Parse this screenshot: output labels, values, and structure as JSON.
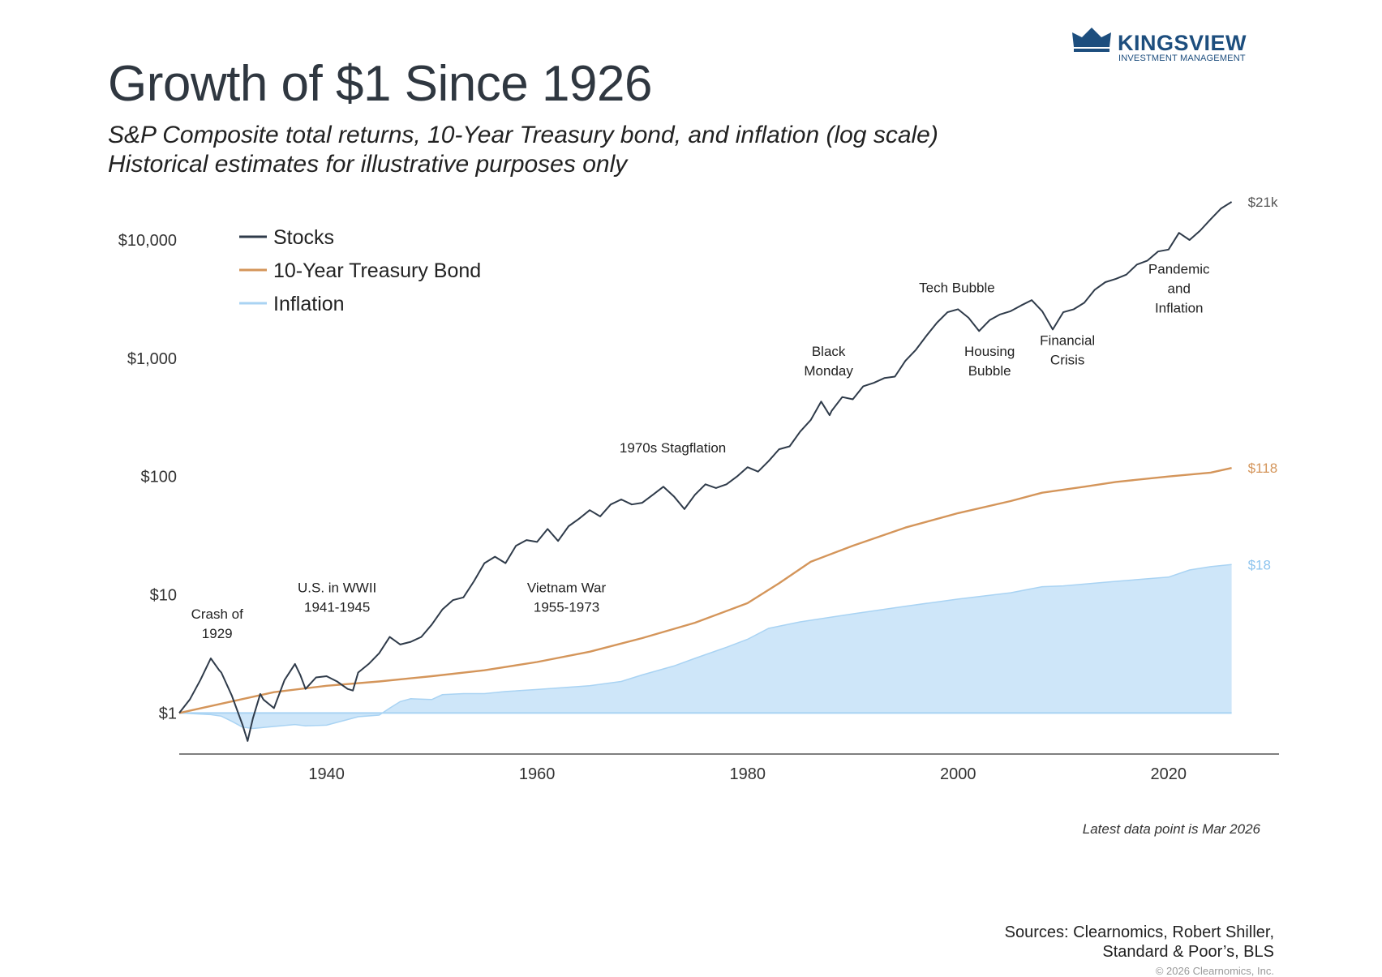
{
  "header": {
    "title": "Growth of $1 Since 1926",
    "subtitle_line1": "S&P Composite total returns, 10-Year Treasury bond, and inflation (log scale)",
    "subtitle_line2": "Historical estimates for illustrative purposes only"
  },
  "logo": {
    "name": "KINGSVIEW",
    "tagline": "INVESTMENT MANAGEMENT",
    "icon": "crown-icon",
    "color": "#1d4e7e"
  },
  "footer": {
    "latest_note": "Latest data point is Mar 2026",
    "sources_line1": "Sources: Clearnomics, Robert Shiller,",
    "sources_line2": "Standard & Poor’s, BLS",
    "copyright": "© 2026 Clearnomics, Inc."
  },
  "chart_data": {
    "type": "line",
    "yscale": "log",
    "ylim": [
      0.45,
      25000
    ],
    "xlim": [
      1926,
      2030.5
    ],
    "x_ticks": [
      1940,
      1960,
      1980,
      2000,
      2020
    ],
    "y_ticks": [
      {
        "value": 1,
        "label": "$1"
      },
      {
        "value": 10,
        "label": "$10"
      },
      {
        "value": 100,
        "label": "$100"
      },
      {
        "value": 1000,
        "label": "$1,000"
      },
      {
        "value": 10000,
        "label": "$10,000"
      }
    ],
    "legend_position": "top-left",
    "grid": false,
    "series": [
      {
        "name": "Stocks",
        "color": "#2f3b4a",
        "end_label": "$21k",
        "points": [
          [
            1926,
            1.0
          ],
          [
            1927,
            1.3
          ],
          [
            1928,
            1.9
          ],
          [
            1929,
            2.9
          ],
          [
            1929.8,
            2.3
          ],
          [
            1930,
            2.2
          ],
          [
            1931,
            1.4
          ],
          [
            1932,
            0.8
          ],
          [
            1932.5,
            0.58
          ],
          [
            1933,
            0.9
          ],
          [
            1933.7,
            1.45
          ],
          [
            1934,
            1.3
          ],
          [
            1935,
            1.1
          ],
          [
            1936,
            1.9
          ],
          [
            1937,
            2.6
          ],
          [
            1937.5,
            2.1
          ],
          [
            1938,
            1.6
          ],
          [
            1939,
            2.0
          ],
          [
            1940,
            2.05
          ],
          [
            1941,
            1.85
          ],
          [
            1942,
            1.6
          ],
          [
            1942.5,
            1.55
          ],
          [
            1943,
            2.2
          ],
          [
            1944,
            2.6
          ],
          [
            1945,
            3.2
          ],
          [
            1946,
            4.4
          ],
          [
            1947,
            3.8
          ],
          [
            1948,
            4.0
          ],
          [
            1949,
            4.4
          ],
          [
            1950,
            5.6
          ],
          [
            1951,
            7.5
          ],
          [
            1952,
            9.0
          ],
          [
            1953,
            9.5
          ],
          [
            1954,
            13.0
          ],
          [
            1955,
            18.5
          ],
          [
            1956,
            21.0
          ],
          [
            1957,
            18.5
          ],
          [
            1958,
            26.0
          ],
          [
            1959,
            29.0
          ],
          [
            1960,
            28.0
          ],
          [
            1961,
            36.0
          ],
          [
            1962,
            28.5
          ],
          [
            1963,
            38.0
          ],
          [
            1964,
            44.0
          ],
          [
            1965,
            52.0
          ],
          [
            1966,
            46.0
          ],
          [
            1967,
            58.0
          ],
          [
            1968,
            64.0
          ],
          [
            1969,
            58.0
          ],
          [
            1970,
            60.0
          ],
          [
            1971,
            70.0
          ],
          [
            1972,
            82.0
          ],
          [
            1973,
            68.0
          ],
          [
            1974,
            53.0
          ],
          [
            1975,
            70.0
          ],
          [
            1976,
            86.0
          ],
          [
            1977,
            80.0
          ],
          [
            1978,
            86.0
          ],
          [
            1979,
            100.0
          ],
          [
            1980,
            120.0
          ],
          [
            1981,
            110.0
          ],
          [
            1982,
            135.0
          ],
          [
            1983,
            170.0
          ],
          [
            1984,
            180.0
          ],
          [
            1985,
            240.0
          ],
          [
            1986,
            300.0
          ],
          [
            1987,
            430.0
          ],
          [
            1987.8,
            330.0
          ],
          [
            1988,
            360.0
          ],
          [
            1989,
            470.0
          ],
          [
            1990,
            450.0
          ],
          [
            1991,
            580.0
          ],
          [
            1992,
            620.0
          ],
          [
            1993,
            680.0
          ],
          [
            1994,
            700.0
          ],
          [
            1995,
            950.0
          ],
          [
            1996,
            1180.0
          ],
          [
            1997,
            1550.0
          ],
          [
            1998,
            2000.0
          ],
          [
            1999,
            2450.0
          ],
          [
            2000,
            2600.0
          ],
          [
            2001,
            2200.0
          ],
          [
            2002,
            1700.0
          ],
          [
            2003,
            2100.0
          ],
          [
            2004,
            2350.0
          ],
          [
            2005,
            2500.0
          ],
          [
            2006,
            2800.0
          ],
          [
            2007,
            3100.0
          ],
          [
            2008,
            2500.0
          ],
          [
            2009,
            1750.0
          ],
          [
            2010,
            2450.0
          ],
          [
            2011,
            2600.0
          ],
          [
            2012,
            2950.0
          ],
          [
            2013,
            3800.0
          ],
          [
            2014,
            4400.0
          ],
          [
            2015,
            4700.0
          ],
          [
            2016,
            5100.0
          ],
          [
            2017,
            6200.0
          ],
          [
            2018,
            6700.0
          ],
          [
            2019,
            8000.0
          ],
          [
            2020,
            8300.0
          ],
          [
            2021,
            11500.0
          ],
          [
            2022,
            10000.0
          ],
          [
            2023,
            12000.0
          ],
          [
            2024,
            15000.0
          ],
          [
            2025,
            18500.0
          ],
          [
            2026,
            21000.0
          ]
        ]
      },
      {
        "name": "10-Year Treasury Bond",
        "color": "#d4955a",
        "end_label": "$118",
        "points": [
          [
            1926,
            1.0
          ],
          [
            1930,
            1.2
          ],
          [
            1935,
            1.5
          ],
          [
            1940,
            1.7
          ],
          [
            1945,
            1.85
          ],
          [
            1950,
            2.05
          ],
          [
            1955,
            2.3
          ],
          [
            1960,
            2.7
          ],
          [
            1965,
            3.3
          ],
          [
            1970,
            4.3
          ],
          [
            1975,
            5.8
          ],
          [
            1980,
            8.5
          ],
          [
            1983,
            12.5
          ],
          [
            1986,
            19.0
          ],
          [
            1990,
            26.0
          ],
          [
            1995,
            37.0
          ],
          [
            2000,
            49.0
          ],
          [
            2005,
            62.0
          ],
          [
            2008,
            73.0
          ],
          [
            2012,
            82.0
          ],
          [
            2015,
            90.0
          ],
          [
            2020,
            100.0
          ],
          [
            2024,
            108.0
          ],
          [
            2026,
            118.0
          ]
        ]
      },
      {
        "name": "Inflation",
        "color": "#c5e2f8",
        "end_label": "$18",
        "points": [
          [
            1926,
            1.0
          ],
          [
            1929,
            0.97
          ],
          [
            1930,
            0.94
          ],
          [
            1931,
            0.85
          ],
          [
            1932,
            0.76
          ],
          [
            1933,
            0.74
          ],
          [
            1935,
            0.77
          ],
          [
            1937,
            0.8
          ],
          [
            1938,
            0.78
          ],
          [
            1940,
            0.79
          ],
          [
            1942,
            0.88
          ],
          [
            1943,
            0.93
          ],
          [
            1945,
            0.96
          ],
          [
            1946,
            1.1
          ],
          [
            1947,
            1.25
          ],
          [
            1948,
            1.32
          ],
          [
            1950,
            1.3
          ],
          [
            1951,
            1.43
          ],
          [
            1953,
            1.46
          ],
          [
            1955,
            1.46
          ],
          [
            1957,
            1.52
          ],
          [
            1960,
            1.58
          ],
          [
            1965,
            1.7
          ],
          [
            1968,
            1.85
          ],
          [
            1970,
            2.1
          ],
          [
            1973,
            2.5
          ],
          [
            1975,
            2.9
          ],
          [
            1978,
            3.6
          ],
          [
            1980,
            4.2
          ],
          [
            1982,
            5.2
          ],
          [
            1985,
            5.9
          ],
          [
            1990,
            6.9
          ],
          [
            1995,
            8.0
          ],
          [
            2000,
            9.2
          ],
          [
            2005,
            10.4
          ],
          [
            2008,
            11.7
          ],
          [
            2010,
            11.9
          ],
          [
            2015,
            13.0
          ],
          [
            2020,
            14.1
          ],
          [
            2022,
            16.2
          ],
          [
            2024,
            17.3
          ],
          [
            2026,
            18.0
          ]
        ]
      }
    ],
    "annotations": [
      {
        "lines": [
          "Crash of",
          "1929"
        ],
        "x": 1929.6,
        "y": 6.3
      },
      {
        "lines": [
          "U.S. in WWII",
          "1941-1945"
        ],
        "x": 1941,
        "y": 10.5
      },
      {
        "lines": [
          "Vietnam War",
          "1955-1973"
        ],
        "x": 1962.8,
        "y": 10.5
      },
      {
        "lines": [
          "1970s Stagflation"
        ],
        "x": 1972.9,
        "y": 160
      },
      {
        "lines": [
          "Black",
          "Monday"
        ],
        "x": 1987.7,
        "y": 1050
      },
      {
        "lines": [
          "Tech Bubble"
        ],
        "x": 1999.9,
        "y": 3600
      },
      {
        "lines": [
          "Housing",
          "Bubble"
        ],
        "x": 2003,
        "y": 1050
      },
      {
        "lines": [
          "Financial",
          "Crisis"
        ],
        "x": 2010.4,
        "y": 1300
      },
      {
        "lines": [
          "Pandemic",
          "and",
          "Inflation"
        ],
        "x": 2021,
        "y": 5200
      }
    ]
  }
}
